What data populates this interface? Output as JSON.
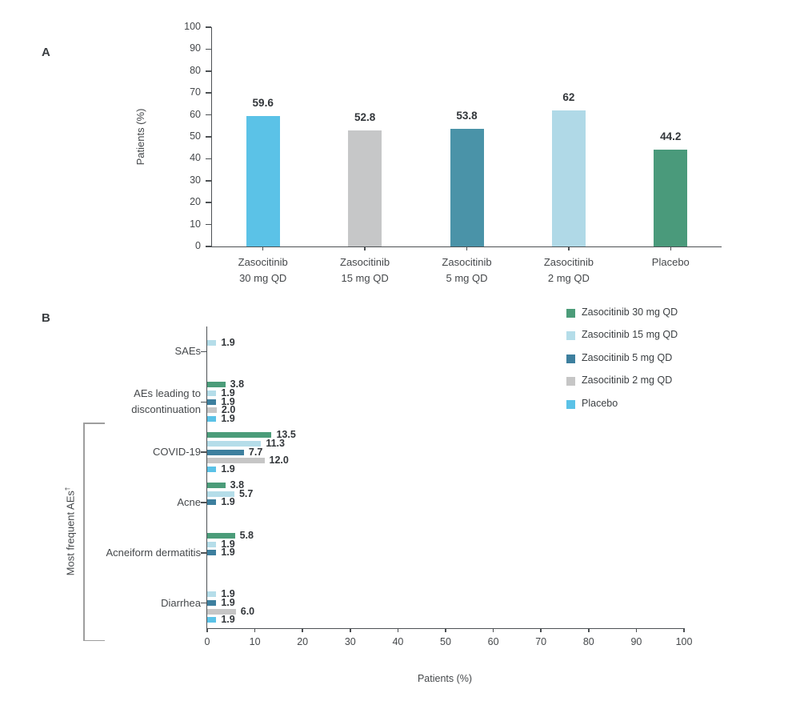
{
  "chart_data": [
    {
      "panel": "A",
      "type": "bar",
      "orientation": "vertical",
      "title": "",
      "ylabel": "Patients (%)",
      "xlabel": "",
      "ylim": [
        0,
        100
      ],
      "ytick_step": 10,
      "grid": false,
      "categories": [
        "Zasocitinib 30 mg QD",
        "Zasocitinib 15 mg QD",
        "Zasocitinib 5 mg QD",
        "Zasocitinib 2 mg QD",
        "Placebo"
      ],
      "category_lines": [
        [
          "Zasocitinib",
          "30 mg QD"
        ],
        [
          "Zasocitinib",
          "15 mg QD"
        ],
        [
          "Zasocitinib",
          "5 mg QD"
        ],
        [
          "Zasocitinib",
          "2 mg QD"
        ],
        [
          "Placebo"
        ]
      ],
      "values": [
        59.6,
        52.8,
        53.8,
        62,
        44.2
      ],
      "value_labels": [
        "59.6",
        "52.8",
        "53.8",
        "62",
        "44.2"
      ],
      "bar_colors": [
        "#5bc2e7",
        "#c6c7c8",
        "#4a93a8",
        "#b0d9e7",
        "#4a9a7b"
      ]
    },
    {
      "panel": "B",
      "type": "bar",
      "orientation": "horizontal",
      "title": "",
      "xlabel": "Patients (%)",
      "xlim": [
        0,
        100
      ],
      "xtick_step": 10,
      "grid": false,
      "legend_position": "upper right",
      "categories": [
        "SAEs",
        "AEs leading to discontinuation",
        "COVID-19",
        "Acne",
        "Acneiform dermatitis",
        "Diarrhea"
      ],
      "category_lines": [
        [
          "SAEs"
        ],
        [
          "AEs leading to",
          "discontinuation"
        ],
        [
          "COVID-19"
        ],
        [
          "Acne"
        ],
        [
          "Acneiform dermatitis"
        ],
        [
          "Diarrhea"
        ]
      ],
      "series": [
        {
          "name": "Zasocitinib 30 mg QD",
          "color": "#4b9c79",
          "values": [
            null,
            3.8,
            13.5,
            3.8,
            5.8,
            null
          ],
          "value_labels": [
            "",
            "3.8",
            "13.5",
            "3.8",
            "5.8",
            ""
          ]
        },
        {
          "name": "Zasocitinib 15 mg QD",
          "color": "#b5dde9",
          "values": [
            1.9,
            1.9,
            11.3,
            5.7,
            1.9,
            1.9
          ],
          "value_labels": [
            "1.9",
            "1.9",
            "11.3",
            "5.7",
            "1.9",
            "1.9"
          ]
        },
        {
          "name": "Zasocitinib 5 mg QD",
          "color": "#3d7f9e",
          "values": [
            null,
            1.9,
            7.7,
            1.9,
            1.9,
            1.9
          ],
          "value_labels": [
            "",
            "1.9",
            "7.7",
            "1.9",
            "1.9",
            "1.9"
          ]
        },
        {
          "name": "Zasocitinib 2 mg QD",
          "color": "#c6c6c6",
          "values": [
            null,
            2.0,
            12.0,
            null,
            null,
            6.0
          ],
          "value_labels": [
            "",
            "2.0",
            "12.0",
            "",
            "",
            "6.0"
          ]
        },
        {
          "name": "Placebo",
          "color": "#5bc2e7",
          "values": [
            null,
            1.9,
            1.9,
            null,
            null,
            1.9
          ],
          "value_labels": [
            "",
            "1.9",
            "1.9",
            "",
            "",
            "1.9"
          ]
        }
      ],
      "bracket": {
        "label": "Most frequent AEs",
        "superscript": "†",
        "covers": [
          "COVID-19",
          "Acne",
          "Acneiform dermatitis",
          "Diarrhea"
        ]
      }
    }
  ]
}
